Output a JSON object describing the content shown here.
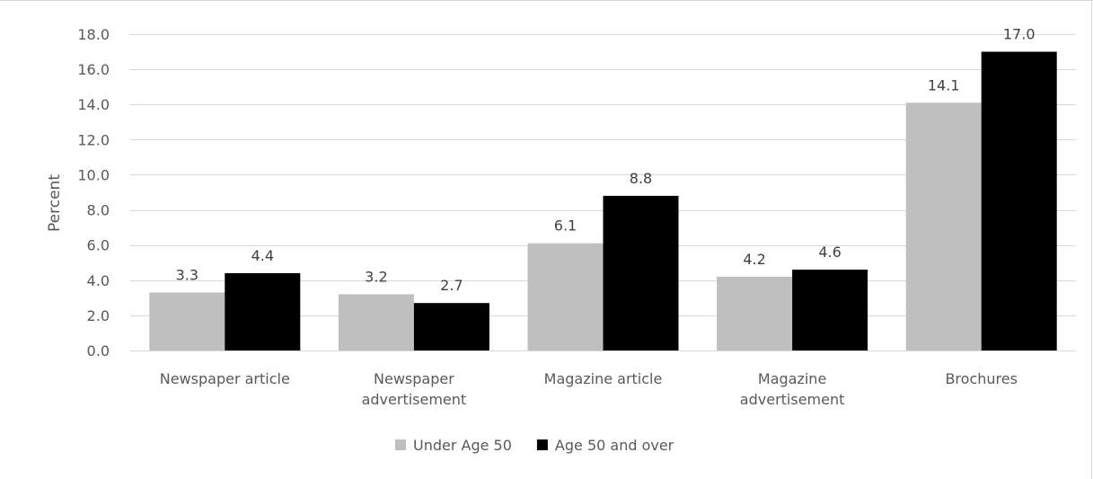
{
  "chart_data": {
    "type": "bar",
    "title": "",
    "xlabel": "",
    "ylabel": "Percent",
    "ylim": [
      0,
      18
    ],
    "ytick_step": 2,
    "ytick_labels": [
      "0.0",
      "2.0",
      "4.0",
      "6.0",
      "8.0",
      "10.0",
      "12.0",
      "14.0",
      "16.0",
      "18.0"
    ],
    "grid": "horizontal",
    "legend_position": "bottom",
    "categories": [
      [
        "Newspaper article"
      ],
      [
        "Newspaper",
        "advertisement"
      ],
      [
        "Magazine article"
      ],
      [
        "Magazine",
        "advertisement"
      ],
      [
        "Brochures"
      ]
    ],
    "series": [
      {
        "name": "Under Age 50",
        "color": "#bfbfbf",
        "values": [
          3.3,
          3.2,
          6.1,
          4.2,
          14.1
        ],
        "labels": [
          "3.3",
          "3.2",
          "6.1",
          "4.2",
          "14.1"
        ]
      },
      {
        "name": "Age 50 and over",
        "color": "#000000",
        "values": [
          4.4,
          2.7,
          8.8,
          4.6,
          17.0
        ],
        "labels": [
          "4.4",
          "2.7",
          "8.8",
          "4.6",
          "17.0"
        ]
      }
    ],
    "colors": {
      "gridline": "#d9d9d9",
      "axis_text": "#595959",
      "label_text": "#404040"
    }
  }
}
